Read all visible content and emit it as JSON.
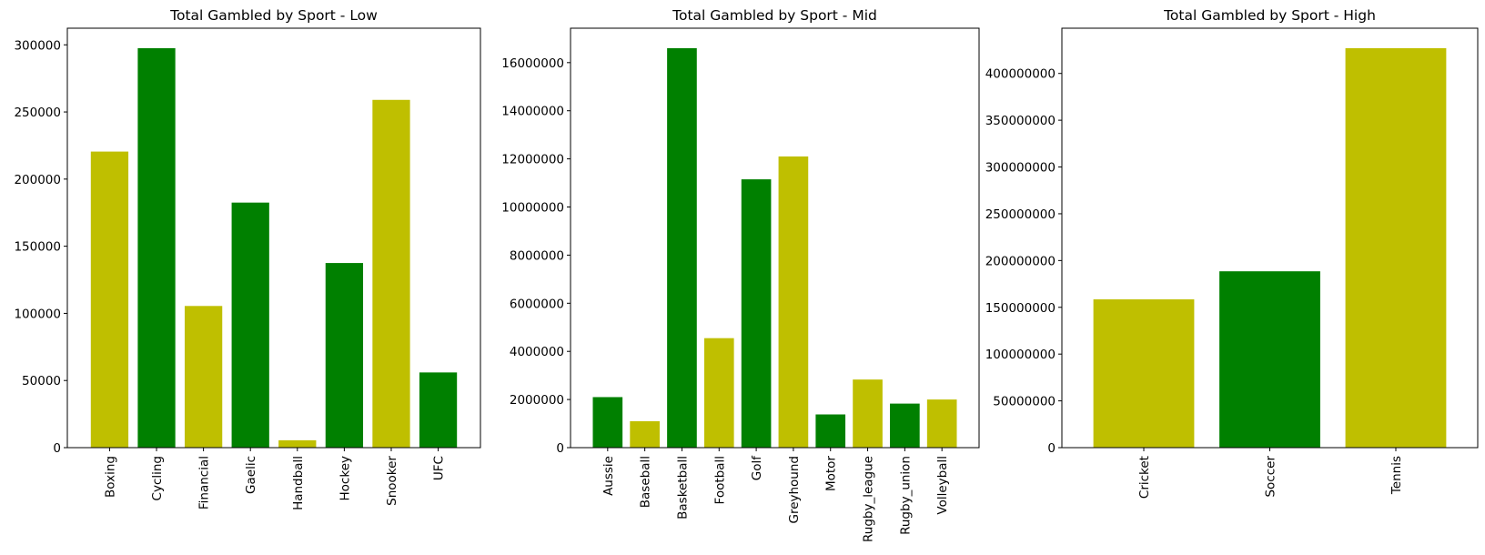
{
  "chart_data": [
    {
      "type": "bar",
      "title": "Total Gambled by Sport - Low",
      "xlabel": "",
      "ylabel": "",
      "categories": [
        "Boxing",
        "Cycling",
        "Financial",
        "Gaelic",
        "Handball",
        "Hockey",
        "Snooker",
        "UFC"
      ],
      "values": [
        220500,
        297500,
        105500,
        182500,
        5500,
        137500,
        259000,
        56000
      ],
      "colors": [
        "#bfbf00",
        "#008000",
        "#bfbf00",
        "#008000",
        "#bfbf00",
        "#008000",
        "#bfbf00",
        "#008000"
      ],
      "yticks": [
        0,
        50000,
        100000,
        150000,
        200000,
        250000,
        300000
      ],
      "ytick_labels": [
        "0",
        "50000",
        "100000",
        "150000",
        "200000",
        "250000",
        "300000"
      ],
      "ylim": [
        0,
        312375
      ],
      "grid": false,
      "legend": null
    },
    {
      "type": "bar",
      "title": "Total Gambled by Sport - Mid",
      "xlabel": "",
      "ylabel": "",
      "categories": [
        "Aussie",
        "Baseball",
        "Basketball",
        "Football",
        "Golf",
        "Greyhound",
        "Motor",
        "Rugby_league",
        "Rugby_union",
        "Volleyball"
      ],
      "values": [
        2100000,
        1100000,
        16600000,
        4550000,
        11150000,
        12100000,
        1380000,
        2830000,
        1830000,
        2000000
      ],
      "colors": [
        "#008000",
        "#bfbf00",
        "#008000",
        "#bfbf00",
        "#008000",
        "#bfbf00",
        "#008000",
        "#bfbf00",
        "#008000",
        "#bfbf00"
      ],
      "yticks": [
        0,
        2000000,
        4000000,
        6000000,
        8000000,
        10000000,
        12000000,
        14000000,
        16000000
      ],
      "ytick_labels": [
        "0",
        "2000000",
        "4000000",
        "6000000",
        "8000000",
        "10000000",
        "12000000",
        "14000000",
        "16000000"
      ],
      "ylim": [
        0,
        17430000
      ],
      "grid": false,
      "legend": null
    },
    {
      "type": "bar",
      "title": "Total Gambled by Sport - High",
      "xlabel": "",
      "ylabel": "",
      "categories": [
        "Cricket",
        "Soccer",
        "Tennis"
      ],
      "values": [
        158500000,
        188500000,
        427000000
      ],
      "colors": [
        "#bfbf00",
        "#008000",
        "#bfbf00"
      ],
      "yticks": [
        0,
        50000000,
        100000000,
        150000000,
        200000000,
        250000000,
        300000000,
        350000000,
        400000000
      ],
      "ytick_labels": [
        "0",
        "50000000",
        "100000000",
        "150000000",
        "200000000",
        "250000000",
        "300000000",
        "350000000",
        "400000000"
      ],
      "ylim": [
        0,
        448350000
      ],
      "grid": false,
      "legend": null
    }
  ]
}
